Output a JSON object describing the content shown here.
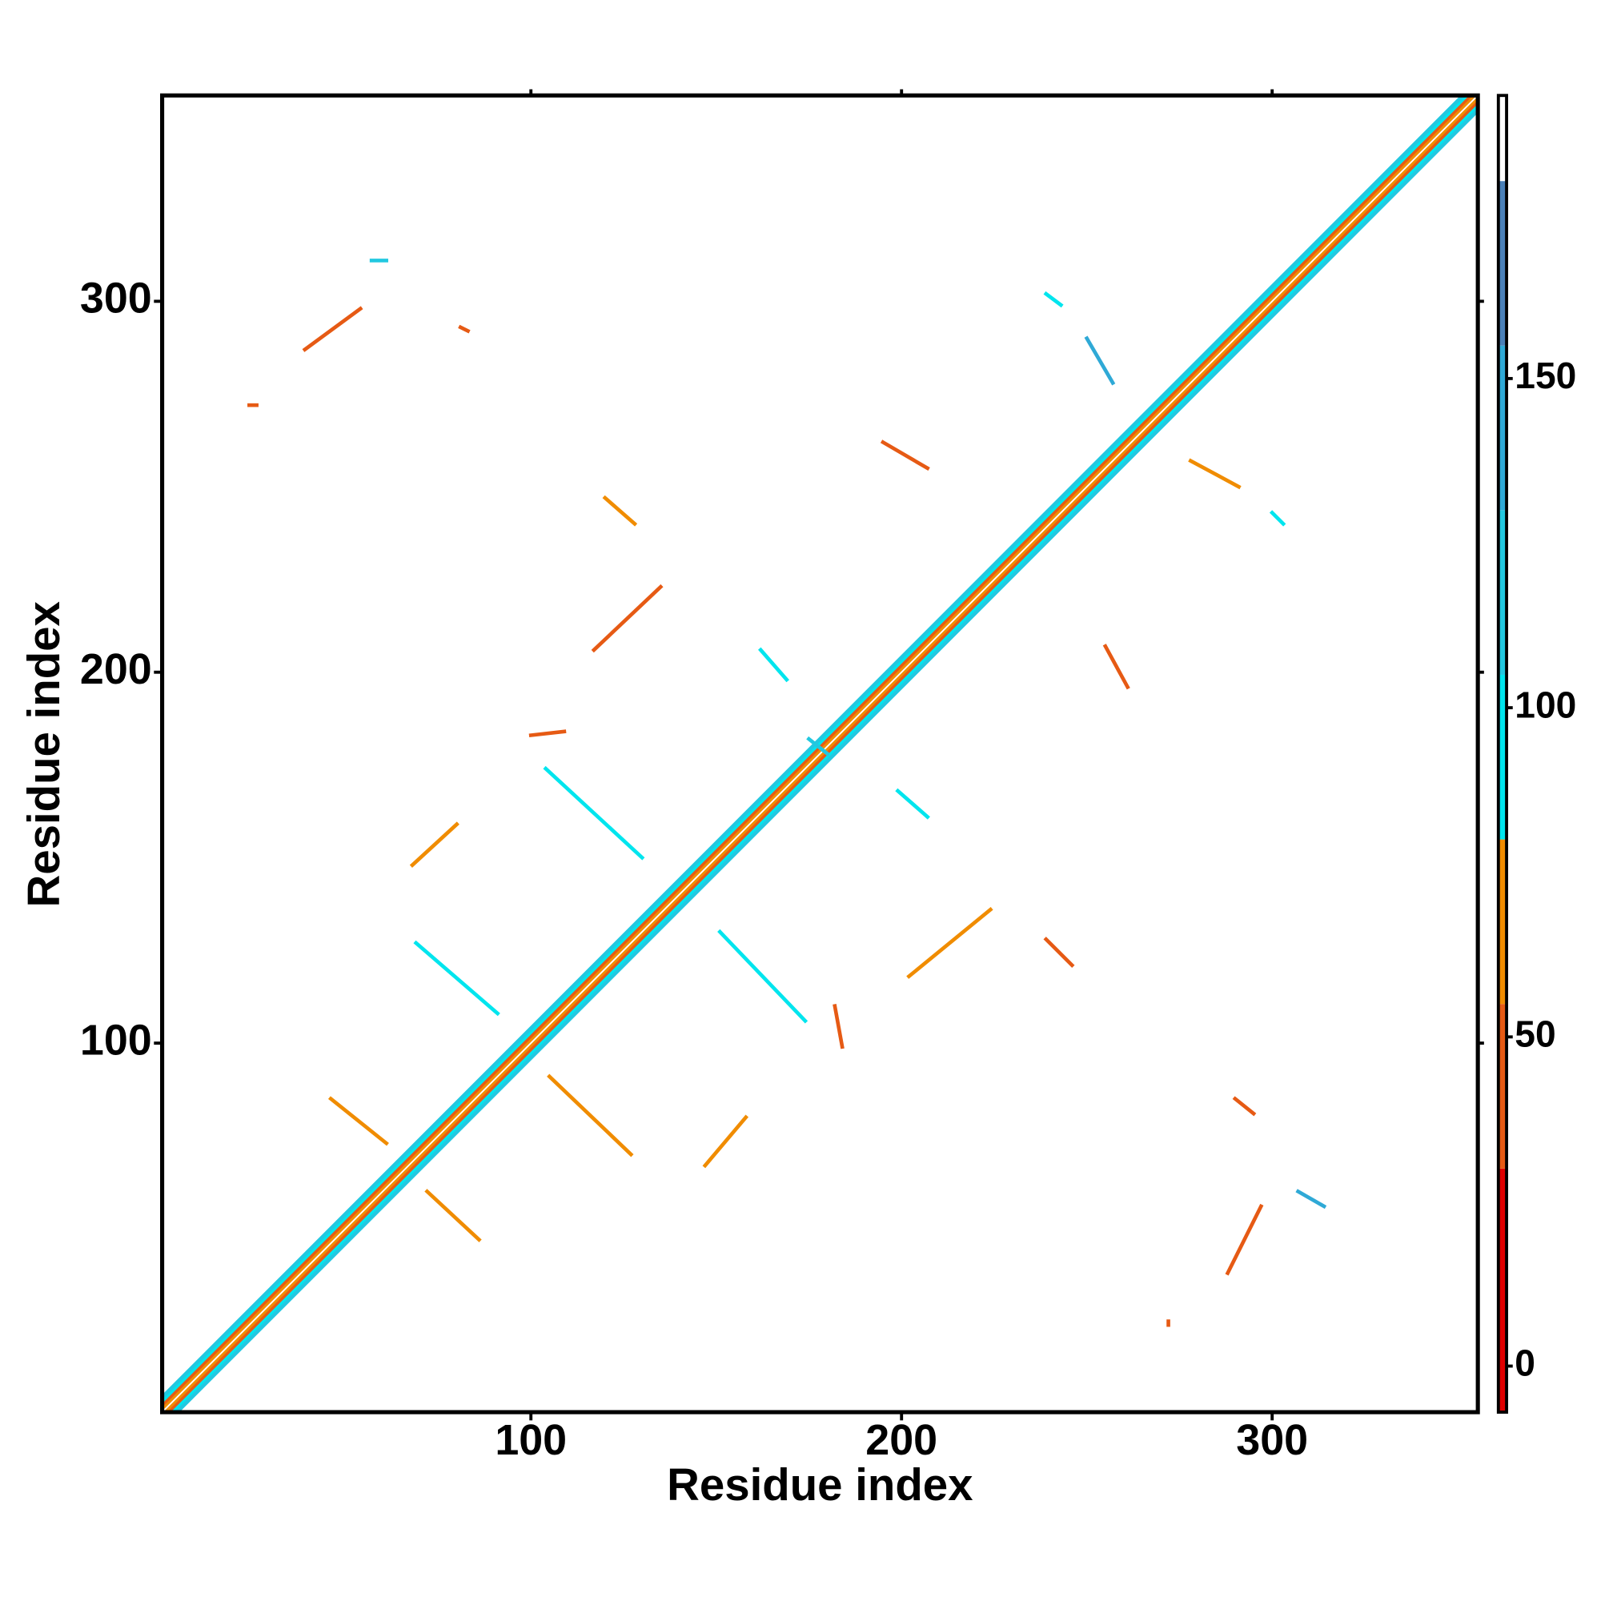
{
  "chart_data": {
    "type": "contact-map",
    "xlabel": "Residue index",
    "ylabel": "Residue index",
    "xlim": [
      0.5,
      355.5
    ],
    "ylim": [
      0.5,
      355.5
    ],
    "xticks": [
      100,
      200,
      300
    ],
    "yticks": [
      100,
      200,
      300
    ],
    "colorbar": {
      "lim": [
        -7,
        193
      ],
      "ticks": [
        0,
        50,
        100,
        150
      ],
      "breaks": [
        -7,
        30,
        55,
        80,
        105,
        130,
        155,
        180,
        193
      ],
      "colors": [
        "#e00000",
        "#e65a14",
        "#f08c00",
        "#00e5ee",
        "#22c8e0",
        "#2fa9d6",
        "#4a80b8",
        "#ffffff"
      ]
    },
    "segments": [
      {
        "x": [
          1,
          355
        ],
        "y": [
          1,
          355
        ],
        "value": 185
      },
      {
        "x": [
          1,
          354
        ],
        "y": [
          2,
          355
        ],
        "value": 60
      },
      {
        "x": [
          2,
          355
        ],
        "y": [
          1,
          354
        ],
        "value": 60
      },
      {
        "x": [
          1,
          353
        ],
        "y": [
          3,
          355
        ],
        "value": 40
      },
      {
        "x": [
          3,
          355
        ],
        "y": [
          1,
          353
        ],
        "value": 40
      },
      {
        "x": [
          1,
          352
        ],
        "y": [
          4,
          355
        ],
        "value": 90
      },
      {
        "x": [
          4,
          355
        ],
        "y": [
          1,
          352
        ],
        "value": 90
      },
      {
        "x": [
          1,
          351
        ],
        "y": [
          5,
          355
        ],
        "value": 110
      },
      {
        "x": [
          5,
          355
        ],
        "y": [
          1,
          351
        ],
        "value": 110
      },
      {
        "x": [
          39,
          54
        ],
        "y": [
          287,
          298
        ],
        "value": 40
      },
      {
        "x": [
          57,
          61
        ],
        "y": [
          311,
          311
        ],
        "value": 120
      },
      {
        "x": [
          81,
          83
        ],
        "y": [
          293,
          292
        ],
        "value": 45
      },
      {
        "x": [
          24,
          26
        ],
        "y": [
          272,
          272
        ],
        "value": 40
      },
      {
        "x": [
          120,
          128
        ],
        "y": [
          247,
          240
        ],
        "value": 60
      },
      {
        "x": [
          117,
          135
        ],
        "y": [
          206,
          223
        ],
        "value": 50
      },
      {
        "x": [
          162,
          169
        ],
        "y": [
          206,
          198
        ],
        "value": 95
      },
      {
        "x": [
          100,
          109
        ],
        "y": [
          183,
          184
        ],
        "value": 40
      },
      {
        "x": [
          104,
          130
        ],
        "y": [
          174,
          150
        ],
        "value": 100
      },
      {
        "x": [
          68,
          80
        ],
        "y": [
          148,
          159
        ],
        "value": 70
      },
      {
        "x": [
          69,
          91
        ],
        "y": [
          127,
          108
        ],
        "value": 85
      },
      {
        "x": [
          151,
          174
        ],
        "y": [
          130,
          106
        ],
        "value": 100
      },
      {
        "x": [
          182,
          184
        ],
        "y": [
          110,
          99
        ],
        "value": 40
      },
      {
        "x": [
          202,
          224
        ],
        "y": [
          118,
          136
        ],
        "value": 70
      },
      {
        "x": [
          199,
          207
        ],
        "y": [
          168,
          161
        ],
        "value": 100
      },
      {
        "x": [
          195,
          207
        ],
        "y": [
          262,
          255
        ],
        "value": 50
      },
      {
        "x": [
          239,
          243
        ],
        "y": [
          302,
          299
        ],
        "value": 95
      },
      {
        "x": [
          250,
          257
        ],
        "y": [
          290,
          278
        ],
        "value": 140
      },
      {
        "x": [
          278,
          291
        ],
        "y": [
          257,
          250
        ],
        "value": 60
      },
      {
        "x": [
          300,
          303
        ],
        "y": [
          243,
          240
        ],
        "value": 95
      },
      {
        "x": [
          255,
          261
        ],
        "y": [
          207,
          196
        ],
        "value": 45
      },
      {
        "x": [
          239,
          246
        ],
        "y": [
          128,
          121
        ],
        "value": 45
      },
      {
        "x": [
          105,
          127
        ],
        "y": [
          91,
          70
        ],
        "value": 65
      },
      {
        "x": [
          46,
          61
        ],
        "y": [
          85,
          73
        ],
        "value": 75
      },
      {
        "x": [
          72,
          86
        ],
        "y": [
          60,
          47
        ],
        "value": 65
      },
      {
        "x": [
          147,
          158
        ],
        "y": [
          67,
          80
        ],
        "value": 70
      },
      {
        "x": [
          290,
          295
        ],
        "y": [
          85,
          81
        ],
        "value": 45
      },
      {
        "x": [
          288,
          297
        ],
        "y": [
          38,
          56
        ],
        "value": 50
      },
      {
        "x": [
          307,
          314
        ],
        "y": [
          60,
          56
        ],
        "value": 140
      },
      {
        "x": [
          272,
          272
        ],
        "y": [
          24,
          25
        ],
        "value": 45
      },
      {
        "x": [
          175,
          180
        ],
        "y": [
          182,
          178
        ],
        "value": 105
      }
    ]
  }
}
